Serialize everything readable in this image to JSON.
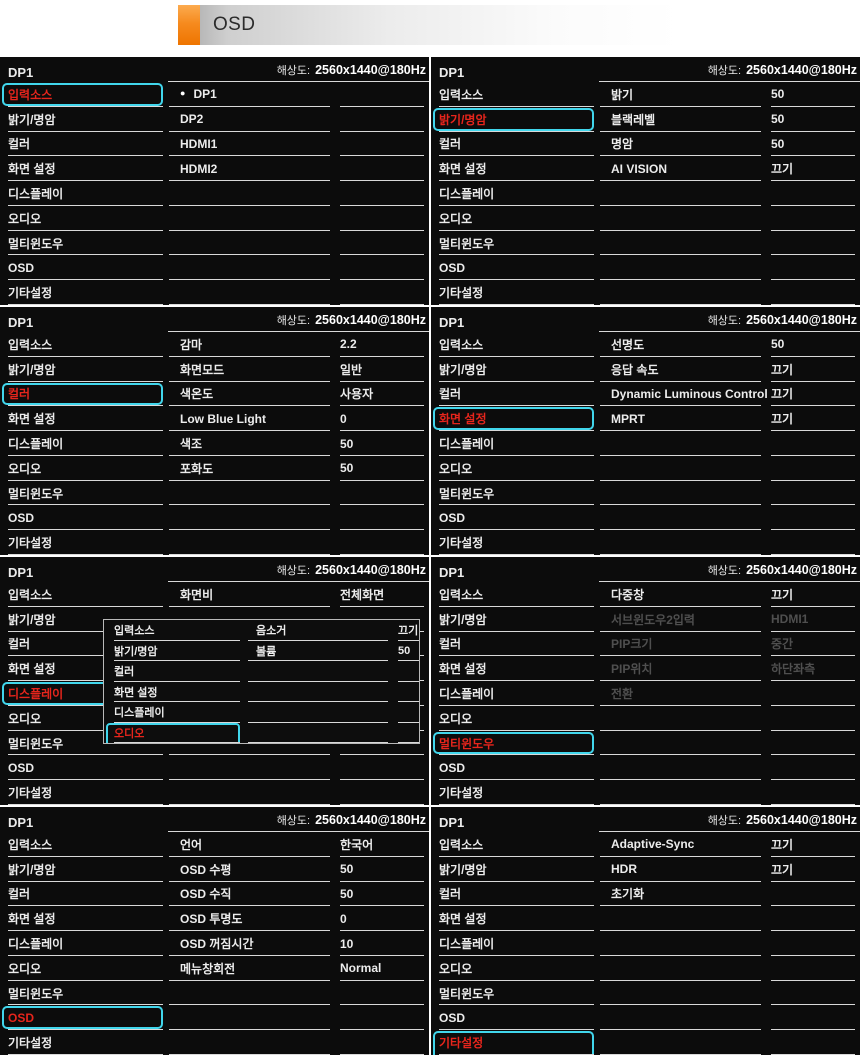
{
  "page": {
    "title_label": "OSD"
  },
  "shared": {
    "panel_title": "DP1",
    "resolution_label": "해상도:",
    "resolution_value": "2560x1440@180Hz",
    "sidebar_items": [
      "입력소스",
      "밝기/명암",
      "컬러",
      "화면 설정",
      "디스플레이",
      "오디오",
      "멀티윈도우",
      "OSD",
      "기타설정"
    ],
    "sidebar_keys": [
      "input-source",
      "brightness-contrast",
      "color",
      "screen-settings",
      "display",
      "audio",
      "multi-window",
      "osd",
      "misc-settings"
    ]
  },
  "colors": {
    "panel_bg": "#0c0c0c",
    "line": "#d9d9d9",
    "text": "#ececec",
    "active_text": "#e6251c",
    "active_border": "#41d6ec",
    "disabled_text": "#4f4f4f",
    "accent_orange": "#f68b1f"
  },
  "panels": [
    {
      "name": "input-source",
      "active": 0,
      "rows": [
        {
          "label": "DP1",
          "value": "",
          "selected": true
        },
        {
          "label": "DP2",
          "value": ""
        },
        {
          "label": "HDMI1",
          "value": ""
        },
        {
          "label": "HDMI2",
          "value": ""
        }
      ]
    },
    {
      "name": "brightness-contrast",
      "active": 1,
      "rows": [
        {
          "label": "밝기",
          "value": "50"
        },
        {
          "label": "블랙레벨",
          "value": "50"
        },
        {
          "label": "명암",
          "value": "50"
        },
        {
          "label": "AI VISION",
          "value": "끄기"
        }
      ]
    },
    {
      "name": "color",
      "active": 2,
      "rows": [
        {
          "label": "감마",
          "value": "2.2"
        },
        {
          "label": "화면모드",
          "value": "일반"
        },
        {
          "label": "색온도",
          "value": "사용자"
        },
        {
          "label": "Low Blue Light",
          "value": "0"
        },
        {
          "label": "색조",
          "value": "50"
        },
        {
          "label": "포화도",
          "value": "50"
        }
      ]
    },
    {
      "name": "screen-settings",
      "active": 3,
      "rows": [
        {
          "label": "선명도",
          "value": "50"
        },
        {
          "label": "응답 속도",
          "value": "끄기"
        },
        {
          "label": "Dynamic Luminous Control",
          "value": "끄기"
        },
        {
          "label": "MPRT",
          "value": "끄기"
        }
      ]
    },
    {
      "name": "display",
      "active": 4,
      "rows": [
        {
          "label": "화면비",
          "value": "전체화면"
        }
      ],
      "overlay": {
        "sidebar_items": [
          "입력소스",
          "밝기/명암",
          "컬러",
          "화면 설정",
          "디스플레이",
          "오디오"
        ],
        "sidebar_keys": [
          "input-source",
          "brightness-contrast",
          "color",
          "screen-settings",
          "display",
          "audio"
        ],
        "active": 5,
        "rows": [
          {
            "label": "음소거",
            "value": "끄기"
          },
          {
            "label": "볼륨",
            "value": "50"
          }
        ]
      }
    },
    {
      "name": "multi-window",
      "active": 6,
      "rows": [
        {
          "label": "다중창",
          "value": "끄기"
        },
        {
          "label": "서브윈도우2입력",
          "value": "HDMI1",
          "disabled": true
        },
        {
          "label": "PIP크기",
          "value": "중간",
          "disabled": true
        },
        {
          "label": "PIP위치",
          "value": "하단좌측",
          "disabled": true
        },
        {
          "label": "전환",
          "value": "",
          "disabled": true
        }
      ]
    },
    {
      "name": "osd",
      "active": 7,
      "rows": [
        {
          "label": "언어",
          "value": "한국어"
        },
        {
          "label": "OSD 수평",
          "value": "50"
        },
        {
          "label": "OSD 수직",
          "value": "50"
        },
        {
          "label": "OSD 투명도",
          "value": "0"
        },
        {
          "label": "OSD 꺼짐시간",
          "value": "10"
        },
        {
          "label": "메뉴창회전",
          "value": "Normal"
        }
      ]
    },
    {
      "name": "misc-settings",
      "active": 8,
      "rows": [
        {
          "label": "Adaptive-Sync",
          "value": "끄기"
        },
        {
          "label": "HDR",
          "value": "끄기"
        },
        {
          "label": "초기화",
          "value": ""
        }
      ]
    }
  ]
}
